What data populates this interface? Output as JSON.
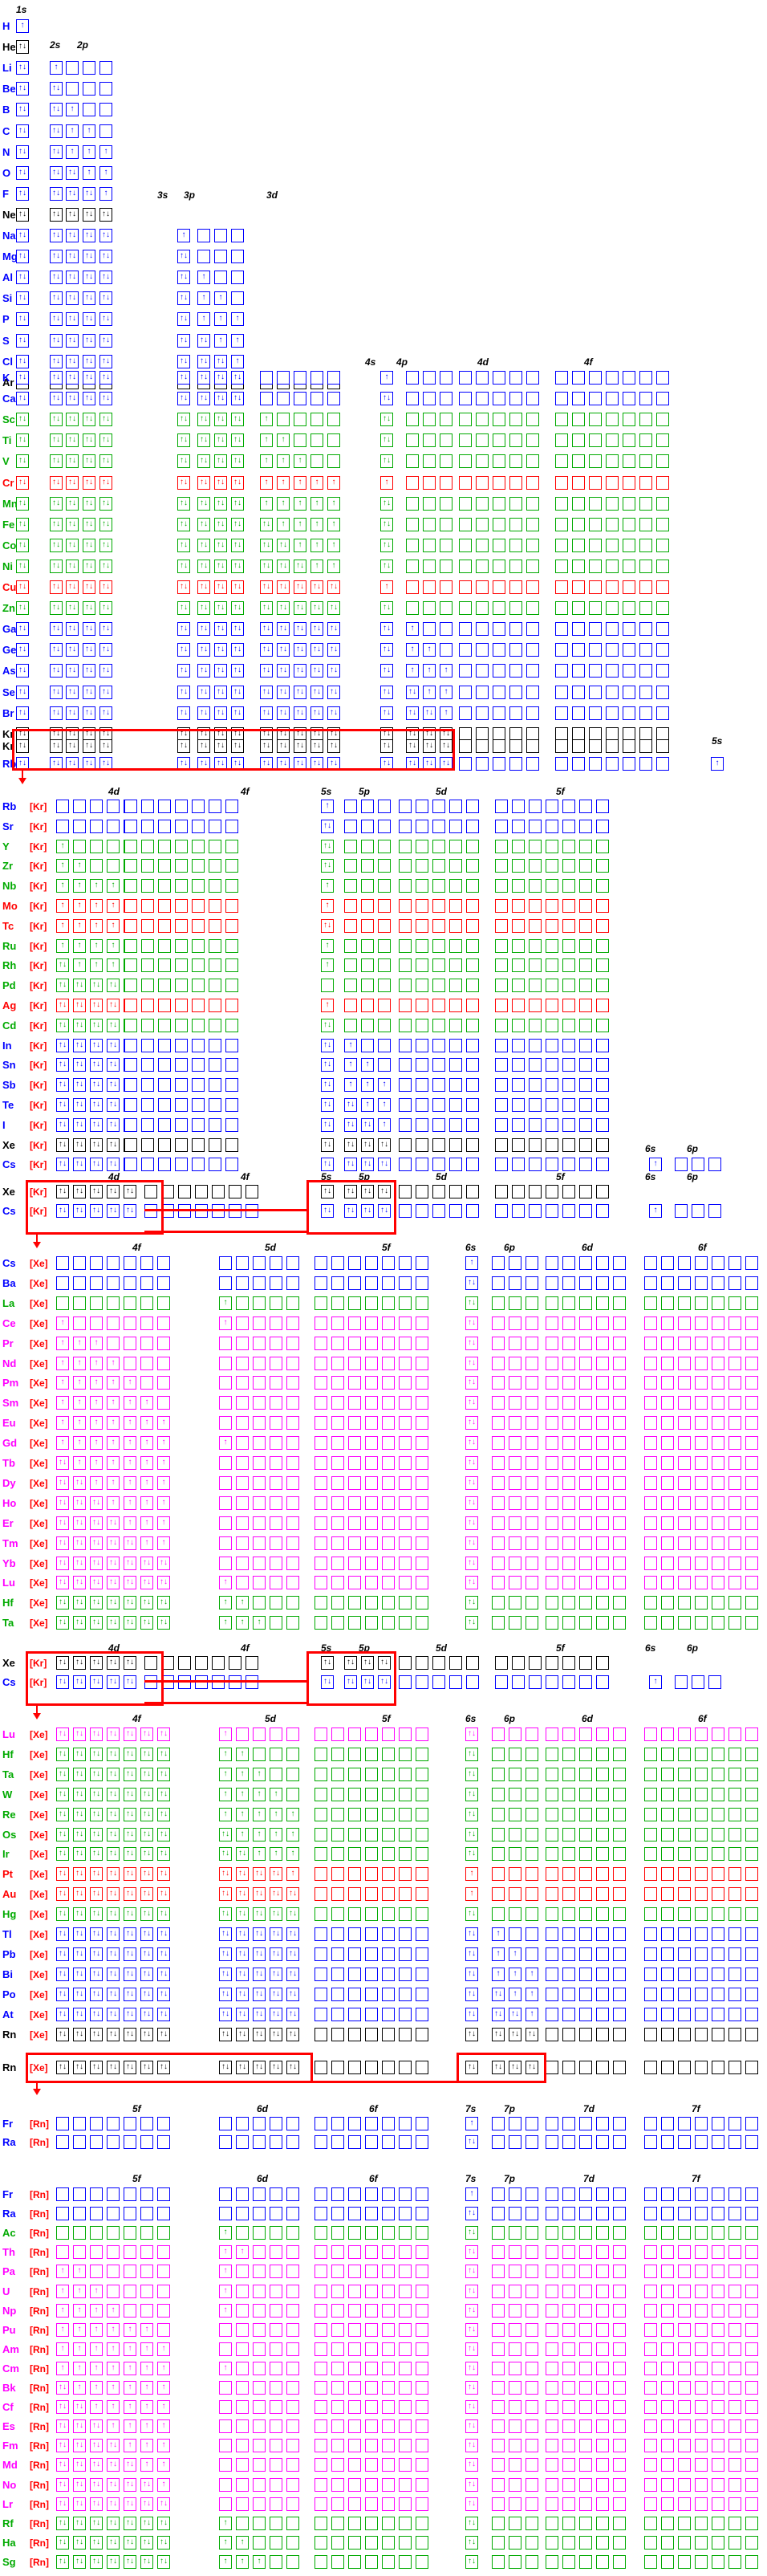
{
  "colors": {
    "s-block": "#0000ff",
    "p-block": "#0000ff",
    "d-block": "#00aa00",
    "f-block": "#ff00ff",
    "noble-gas": "#000000",
    "anomaly": "#ff0000",
    "highlight-frame": "#ff0000"
  },
  "blocks": [
    {
      "name": "period-1-3",
      "headers": [
        "1s",
        "2s",
        "2p",
        "3s",
        "3p",
        "3d"
      ],
      "rows": [
        "H",
        "He",
        "Li",
        "Be",
        "B",
        "C",
        "N",
        "O",
        "F",
        "Ne",
        "Na",
        "Mg",
        "Al",
        "Si",
        "P",
        "S",
        "Cl",
        "Ar"
      ]
    },
    {
      "name": "period-4",
      "headers": [
        "4s",
        "4p",
        "4d",
        "4f"
      ],
      "rows": [
        "K",
        "Ca",
        "Sc",
        "Ti",
        "V",
        "Cr",
        "Mn",
        "Fe",
        "Co",
        "Ni",
        "Cu",
        "Zn",
        "Ga",
        "Ge",
        "As",
        "Se",
        "Br",
        "Kr"
      ]
    },
    {
      "name": "kr-bridge",
      "headers": [
        "5s"
      ],
      "rows": [
        "Kr",
        "Rb"
      ]
    },
    {
      "name": "period-5",
      "headers": [
        "4d",
        "4f",
        "5s",
        "5p",
        "5d",
        "5f"
      ],
      "prefix": "[Kr]",
      "rows": [
        "Rb",
        "Sr",
        "Y",
        "Zr",
        "Nb",
        "Mo",
        "Tc",
        "Ru",
        "Rh",
        "Pd",
        "Ag",
        "Cd",
        "In",
        "Sn",
        "Sb",
        "Te",
        "I",
        "Xe",
        "Cs"
      ],
      "extra_headers": [
        "6s",
        "6p"
      ]
    },
    {
      "name": "xe-bridge-1",
      "headers": [
        "4d",
        "4f",
        "5s",
        "5p",
        "5d",
        "5f",
        "6s",
        "6p"
      ],
      "prefix": "[Kr]",
      "rows": [
        "Xe",
        "Cs"
      ]
    },
    {
      "name": "period-6-lanthanides",
      "headers": [
        "4f",
        "5d",
        "5f",
        "6s",
        "6p",
        "6d",
        "6f"
      ],
      "prefix": "[Xe]",
      "rows": [
        "Cs",
        "Ba",
        "La",
        "Ce",
        "Pr",
        "Nd",
        "Pm",
        "Sm",
        "Eu",
        "Gd",
        "Tb",
        "Dy",
        "Ho",
        "Er",
        "Tm",
        "Yb",
        "Lu",
        "Hf",
        "Ta"
      ]
    },
    {
      "name": "xe-bridge-2",
      "headers": [
        "4d",
        "4f",
        "5s",
        "5p",
        "5d",
        "5f",
        "6s",
        "6p"
      ],
      "prefix": "[Kr]",
      "rows": [
        "Xe",
        "Cs"
      ]
    },
    {
      "name": "period-6-transition",
      "headers": [
        "4f",
        "5d",
        "5f",
        "6s",
        "6p",
        "6d",
        "6f"
      ],
      "prefix": "[Xe]",
      "rows": [
        "Lu",
        "Hf",
        "Ta",
        "W",
        "Re",
        "Os",
        "Ir",
        "Pt",
        "Au",
        "Hg",
        "Tl",
        "Pb",
        "Bi",
        "Po",
        "At",
        "Rn"
      ]
    },
    {
      "name": "rn-bridge",
      "headers": [],
      "prefix": "[Xe]",
      "rows": [
        "Rn"
      ]
    },
    {
      "name": "period-7-start",
      "headers": [
        "5f",
        "6d",
        "6f",
        "7s",
        "7p",
        "7d",
        "7f"
      ],
      "prefix": "[Rn]",
      "rows": [
        "Fr",
        "Ra"
      ]
    },
    {
      "name": "period-7",
      "headers": [
        "5f",
        "6d",
        "6f",
        "7s",
        "7p",
        "7d",
        "7f"
      ],
      "prefix": "[Rn]",
      "rows": [
        "Fr",
        "Ra",
        "Ac",
        "Th",
        "Pa",
        "U",
        "Np",
        "Pu",
        "Am",
        "Cm",
        "Bk",
        "Cf",
        "Es",
        "Fm",
        "Md",
        "No",
        "Lr",
        "Rf",
        "Ha",
        "Sg"
      ]
    }
  ]
}
